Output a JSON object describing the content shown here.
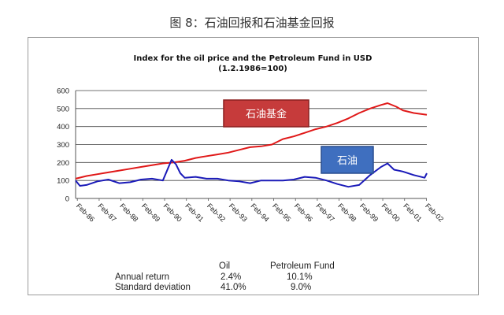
{
  "caption": "图 8：石油回报和石油基金回报",
  "chart_data": {
    "type": "line",
    "title": "Index for the oil price and the Petroleum Fund in USD",
    "subtitle": "(1.2.1986=100)",
    "xlabel": "",
    "ylabel": "",
    "ylim": [
      0,
      600
    ],
    "yticks": [
      0,
      100,
      200,
      300,
      400,
      500,
      600
    ],
    "xlim": [
      1986.0,
      2002.1
    ],
    "xtick_labels": [
      "Feb-86",
      "Feb-87",
      "Feb-88",
      "Feb-89",
      "Feb-90",
      "Feb-91",
      "Feb-92",
      "Feb-93",
      "Feb-94",
      "Feb-95",
      "Feb-96",
      "Feb-97",
      "Feb-98",
      "Feb-99",
      "Feb-00",
      "Feb-01",
      "Feb-02"
    ],
    "xtick_years": [
      1986.08,
      1987.08,
      1988.08,
      1989.08,
      1990.08,
      1991.08,
      1992.08,
      1993.08,
      1994.08,
      1995.08,
      1996.08,
      1997.08,
      1998.08,
      1999.08,
      2000.08,
      2001.08,
      2002.08
    ],
    "grid": "horizontal",
    "series": [
      {
        "name": "石油基金",
        "color": "#e01818",
        "x": [
          1986.0,
          1986.5,
          1987.0,
          1987.5,
          1988.0,
          1988.5,
          1989.0,
          1989.5,
          1990.0,
          1990.5,
          1991.0,
          1991.5,
          1992.0,
          1992.5,
          1993.0,
          1993.5,
          1994.0,
          1994.5,
          1995.0,
          1995.5,
          1996.0,
          1996.5,
          1997.0,
          1997.5,
          1998.0,
          1998.5,
          1999.0,
          1999.5,
          2000.0,
          2000.3,
          2000.7,
          2001.0,
          2001.5,
          2002.1
        ],
        "values": [
          110,
          125,
          135,
          145,
          155,
          165,
          175,
          185,
          195,
          200,
          210,
          225,
          235,
          245,
          255,
          270,
          285,
          290,
          300,
          330,
          345,
          365,
          385,
          400,
          420,
          445,
          475,
          500,
          520,
          530,
          510,
          490,
          475,
          465
        ]
      },
      {
        "name": "石油",
        "color": "#1a1ab8",
        "x": [
          1986.0,
          1986.2,
          1986.5,
          1987.0,
          1987.5,
          1988.0,
          1988.5,
          1989.0,
          1989.5,
          1990.0,
          1990.4,
          1990.6,
          1990.8,
          1991.0,
          1991.5,
          1992.0,
          1992.5,
          1993.0,
          1993.5,
          1994.0,
          1994.5,
          1995.0,
          1995.5,
          1996.0,
          1996.5,
          1997.0,
          1997.5,
          1998.0,
          1998.5,
          1999.0,
          1999.5,
          2000.0,
          2000.3,
          2000.6,
          2001.0,
          2001.5,
          2002.0,
          2002.1
        ],
        "values": [
          100,
          70,
          75,
          95,
          105,
          85,
          90,
          105,
          110,
          100,
          215,
          190,
          140,
          115,
          120,
          110,
          110,
          100,
          95,
          85,
          100,
          100,
          100,
          105,
          120,
          115,
          100,
          80,
          65,
          75,
          130,
          175,
          195,
          160,
          150,
          130,
          115,
          140
        ]
      }
    ],
    "annotations": [
      {
        "text": "石油基金",
        "series": "石油基金"
      },
      {
        "text": "石油",
        "series": "石油"
      }
    ],
    "stats_table": {
      "col_oil": "Oil",
      "col_fund": "Petroleum Fund",
      "rows": [
        {
          "label": "Annual return",
          "oil": "2.4%",
          "fund": "10.1%"
        },
        {
          "label": "Standard deviation",
          "oil": "41.0%",
          "fund": "9.0%"
        }
      ]
    }
  }
}
